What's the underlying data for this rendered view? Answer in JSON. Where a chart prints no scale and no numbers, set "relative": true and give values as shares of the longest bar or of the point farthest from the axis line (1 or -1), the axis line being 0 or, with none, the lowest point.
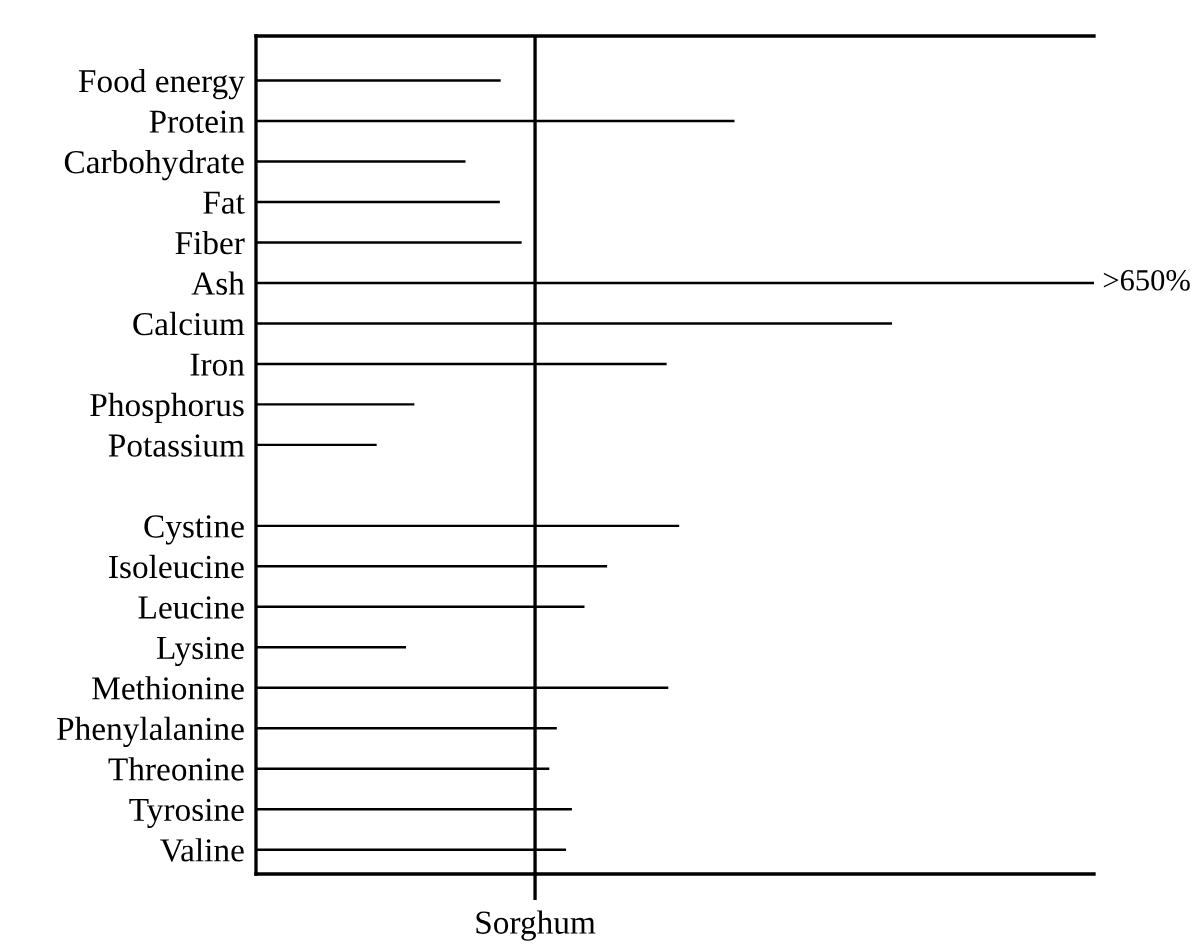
{
  "chart_data": {
    "type": "bar",
    "orientation": "horizontal",
    "relative": true,
    "color": "#000000",
    "categories": [
      "Food energy",
      "Protein",
      "Carbohydrate",
      "Fat",
      "Fiber",
      "Ash",
      "Calcium",
      "Iron",
      "Phosphorus",
      "Potassium",
      null,
      "Cystine",
      "Isoleucine",
      "Leucine",
      "Lysine",
      "Methionine",
      "Phenylalanine",
      "Threonine",
      "Tyrosine",
      "Valine"
    ],
    "values": [
      0.292,
      0.571,
      0.25,
      0.291,
      0.317,
      1,
      0.759,
      0.49,
      0.189,
      0.144,
      null,
      0.505,
      0.419,
      0.392,
      0.179,
      0.492,
      0.359,
      0.35,
      0.377,
      0.37
    ],
    "ref_lines": [
      {
        "axis": "x",
        "value": 0.333,
        "label": "Sorghum",
        "color": "#000000"
      }
    ],
    "annotations": [
      {
        "text": ">650%",
        "x": 1,
        "y": "Ash"
      }
    ],
    "grid": false
  }
}
